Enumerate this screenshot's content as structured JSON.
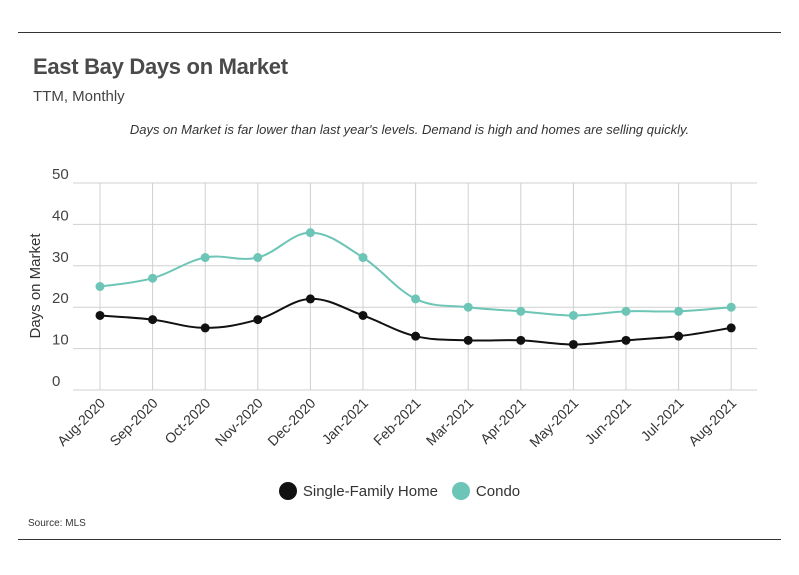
{
  "header": {
    "title": "East Bay Days on Market",
    "subtitle": "TTM, Monthly",
    "note": "Days on Market is far lower than last year's levels. Demand is high and homes are selling quickly."
  },
  "source": "Source:  MLS",
  "chart_data": {
    "type": "line",
    "title": "East Bay Days on Market",
    "subtitle": "TTM, Monthly",
    "xlabel": "",
    "ylabel": "Days on Market",
    "ylim": [
      0,
      50
    ],
    "yticks": [
      0,
      10,
      20,
      30,
      40,
      50
    ],
    "grid": true,
    "legend_position": "bottom",
    "categories": [
      "Aug-2020",
      "Sep-2020",
      "Oct-2020",
      "Nov-2020",
      "Dec-2020",
      "Jan-2021",
      "Feb-2021",
      "Mar-2021",
      "Apr-2021",
      "May-2021",
      "Jun-2021",
      "Jul-2021",
      "Aug-2021"
    ],
    "series": [
      {
        "name": "Single-Family Home",
        "color": "#111111",
        "values": [
          18,
          17,
          15,
          17,
          22,
          18,
          13,
          12,
          12,
          11,
          12,
          13,
          15
        ]
      },
      {
        "name": "Condo",
        "color": "#6cc5b6",
        "values": [
          25,
          27,
          32,
          32,
          38,
          32,
          22,
          20,
          19,
          18,
          19,
          19,
          20
        ]
      }
    ]
  }
}
